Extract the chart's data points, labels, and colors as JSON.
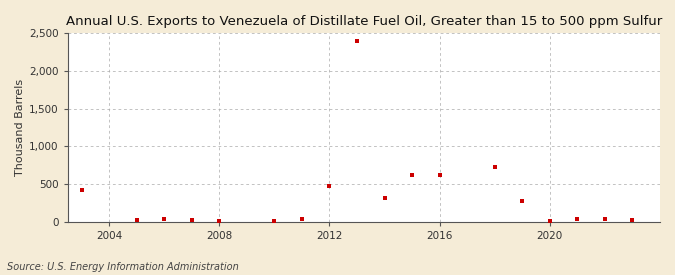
{
  "title": "Annual U.S. Exports to Venezuela of Distillate Fuel Oil, Greater than 15 to 500 ppm Sulfur",
  "ylabel": "Thousand Barrels",
  "source": "Source: U.S. Energy Information Administration",
  "background_color": "#f5ecd7",
  "plot_background_color": "#ffffff",
  "marker_color": "#cc0000",
  "years": [
    2003,
    2005,
    2006,
    2007,
    2008,
    2010,
    2011,
    2012,
    2013,
    2014,
    2015,
    2016,
    2018,
    2019,
    2020,
    2021,
    2022,
    2023
  ],
  "values": [
    420,
    20,
    30,
    20,
    10,
    10,
    40,
    480,
    2400,
    320,
    620,
    620,
    730,
    280,
    10,
    40,
    30,
    20
  ],
  "xlim": [
    2002.5,
    2024
  ],
  "ylim": [
    0,
    2500
  ],
  "yticks": [
    0,
    500,
    1000,
    1500,
    2000,
    2500
  ],
  "ytick_labels": [
    "0",
    "500",
    "1,000",
    "1,500",
    "2,000",
    "2,500"
  ],
  "xticks": [
    2004,
    2008,
    2012,
    2016,
    2020
  ],
  "vgrid_ticks": [
    2004,
    2008,
    2012,
    2016,
    2020
  ],
  "title_fontsize": 9.5,
  "label_fontsize": 8,
  "tick_fontsize": 7.5,
  "source_fontsize": 7
}
